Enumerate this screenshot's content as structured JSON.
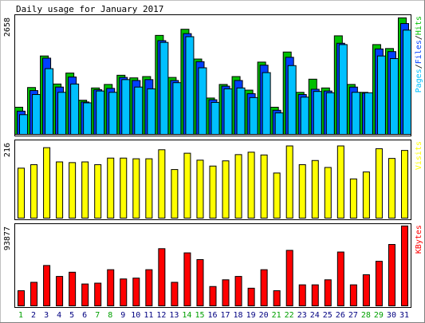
{
  "chart_data": {
    "type": "bar",
    "title": "Daily usage for January 2017",
    "categories": [
      "1",
      "2",
      "3",
      "4",
      "5",
      "6",
      "7",
      "8",
      "9",
      "10",
      "11",
      "12",
      "13",
      "14",
      "15",
      "16",
      "17",
      "18",
      "19",
      "20",
      "21",
      "22",
      "23",
      "24",
      "25",
      "26",
      "27",
      "28",
      "29",
      "30",
      "31"
    ],
    "weekend_days": [
      1,
      7,
      8,
      14,
      15,
      21,
      22,
      28,
      29
    ],
    "colors": {
      "weekday_label": "#000080",
      "weekend_label": "#00a000",
      "hits": "#00c000",
      "files": "#0040ff",
      "pages": "#00c0ff",
      "visits": "#ffff00",
      "kbytes": "#ff0000",
      "outline": "#000000",
      "panel_border": "#000000",
      "frame_light": "#c0c0c0",
      "frame_dark": "#808080"
    },
    "panels": [
      {
        "id": "hits",
        "max_label": "2658",
        "ylim": [
          0,
          2658
        ],
        "legend_text": [
          "Pages",
          "/",
          "Files",
          "/",
          "Hits"
        ],
        "legend_colors": [
          "#00c0ff",
          "#000000",
          "#0040ff",
          "#000000",
          "#00c000"
        ],
        "series": [
          {
            "name": "Hits",
            "color": "#00c000",
            "values": [
              620,
              1070,
              1790,
              1150,
              1400,
              780,
              1060,
              1140,
              1350,
              1290,
              1320,
              2260,
              1300,
              2400,
              1720,
              830,
              1140,
              1320,
              1010,
              1650,
              620,
              1880,
              960,
              1260,
              1060,
              2250,
              1140,
              960,
              2050,
              1960,
              2660
            ]
          },
          {
            "name": "Files",
            "color": "#0040ff",
            "values": [
              530,
              1000,
              1740,
              1080,
              1310,
              740,
              1020,
              1050,
              1300,
              1230,
              1250,
              2140,
              1230,
              2300,
              1660,
              790,
              1100,
              1230,
              930,
              1580,
              550,
              1760,
              910,
              1030,
              990,
              2080,
              1080,
              940,
              1950,
              1890,
              2530
            ]
          },
          {
            "name": "Pages",
            "color": "#00c0ff",
            "values": [
              450,
              910,
              1500,
              960,
              1150,
              720,
              990,
              960,
              1250,
              1080,
              1040,
              2100,
              1180,
              2230,
              1520,
              730,
              1040,
              1060,
              840,
              1410,
              490,
              1570,
              850,
              980,
              950,
              2050,
              960,
              950,
              1790,
              1730,
              2380
            ]
          }
        ]
      },
      {
        "id": "visits",
        "max_label": "216",
        "ylim": [
          0,
          216
        ],
        "legend_text": [
          "Visits"
        ],
        "legend_colors": [
          "#ffff00"
        ],
        "series": [
          {
            "name": "Visits",
            "color": "#ffff00",
            "values": [
              144,
              154,
              203,
              162,
              160,
              162,
              154,
              173,
              173,
              171,
              171,
              197,
              140,
              187,
              167,
              150,
              165,
              183,
              190,
              182,
              130,
              208,
              154,
              166,
              146,
              208,
              113,
              133,
              200,
              172,
              195
            ]
          }
        ]
      },
      {
        "id": "kbytes",
        "max_label": "93877",
        "ylim": [
          0,
          93877
        ],
        "legend_text": [
          "KBytes"
        ],
        "legend_colors": [
          "#ff0000"
        ],
        "series": [
          {
            "name": "KBytes",
            "color": "#ff0000",
            "values": [
              18000,
              28000,
              48000,
              35000,
              40000,
              26000,
              27000,
              43000,
              32000,
              33000,
              43000,
              68000,
              28000,
              63000,
              55000,
              23000,
              31000,
              35000,
              21000,
              43000,
              18000,
              66000,
              25000,
              25000,
              31000,
              64000,
              25000,
              37000,
              53000,
              73000,
              95000
            ]
          }
        ]
      }
    ]
  }
}
